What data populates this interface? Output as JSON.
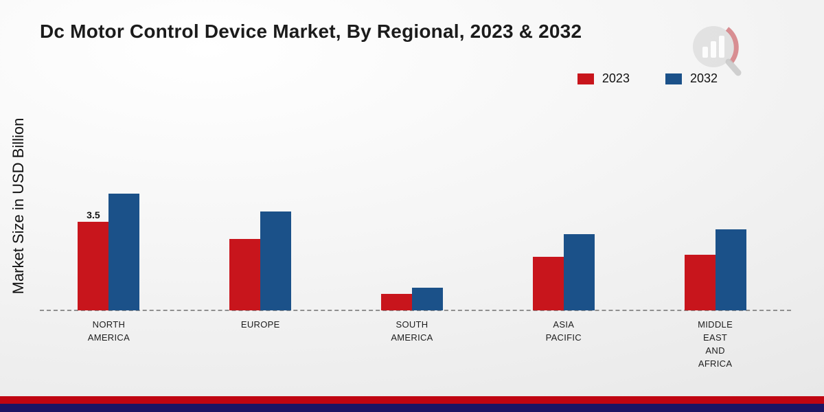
{
  "chart_data": {
    "type": "bar",
    "title": "Dc Motor Control Device Market, By Regional, 2023 & 2032",
    "ylabel": "Market Size in USD Billion",
    "xlabel": "",
    "categories": [
      "NORTH AMERICA",
      "EUROPE",
      "SOUTH AMERICA",
      "ASIA PACIFIC",
      "MIDDLE EAST AND AFRICA"
    ],
    "series": [
      {
        "name": "2023",
        "color": "#c8151c",
        "values": [
          3.5,
          2.8,
          0.65,
          2.1,
          2.2
        ]
      },
      {
        "name": "2032",
        "color": "#1b5189",
        "values": [
          4.6,
          3.9,
          0.9,
          3.0,
          3.2
        ]
      }
    ],
    "ylim": [
      0,
      5
    ],
    "grid": false,
    "legend_position": "top-right",
    "baseline_style": "dashed",
    "annotations": [
      {
        "category": "NORTH AMERICA",
        "series": "2023",
        "text": "3.5"
      }
    ]
  },
  "footer": {
    "red_band_color": "#c00511",
    "navy_band_color": "#1b1464"
  }
}
